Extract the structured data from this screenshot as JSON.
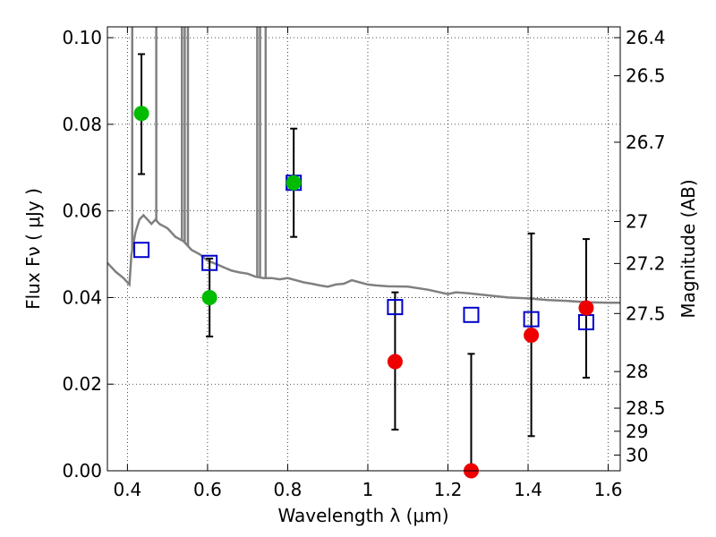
{
  "chart_data": {
    "type": "scatter",
    "xlabel": "Wavelength  λ (μm)",
    "ylabel": "Flux  Fν  ( μJy )",
    "ylabel_right": "Magnitude (AB)",
    "xlim": [
      0.35,
      1.63
    ],
    "ylim": [
      0.0,
      0.1025
    ],
    "grid": true,
    "x_ticks": [
      0.4,
      0.6,
      0.8,
      1.0,
      1.2,
      1.4,
      1.6
    ],
    "x_tick_labels": [
      "0.4",
      "0.6",
      "0.8",
      "1",
      "1.2",
      "1.4",
      "1.6"
    ],
    "y_ticks": [
      0.0,
      0.02,
      0.04,
      0.06,
      0.08,
      0.1
    ],
    "y_tick_labels": [
      "0.00",
      "0.02",
      "0.04",
      "0.06",
      "0.08",
      "0.10"
    ],
    "right_axis_ticks": [
      {
        "label": "26.4",
        "mag": 26.4
      },
      {
        "label": "26.5",
        "mag": 26.5
      },
      {
        "label": "26.7",
        "mag": 26.7
      },
      {
        "label": "27",
        "mag": 27.0
      },
      {
        "label": "27.2",
        "mag": 27.2
      },
      {
        "label": "27.5",
        "mag": 27.5
      },
      {
        "label": "28",
        "mag": 28.0
      },
      {
        "label": "28.5",
        "mag": 28.5
      },
      {
        "label": "29",
        "mag": 29.0
      },
      {
        "label": "30",
        "mag": 30.0
      }
    ],
    "model_spectrum": {
      "color": "#808080",
      "points": [
        [
          0.35,
          0.048
        ],
        [
          0.37,
          0.046
        ],
        [
          0.39,
          0.0445
        ],
        [
          0.405,
          0.043
        ],
        [
          0.41,
          0.05
        ],
        [
          0.42,
          0.055
        ],
        [
          0.43,
          0.058
        ],
        [
          0.44,
          0.059
        ],
        [
          0.45,
          0.058
        ],
        [
          0.46,
          0.057
        ],
        [
          0.47,
          0.058
        ],
        [
          0.48,
          0.057
        ],
        [
          0.5,
          0.056
        ],
        [
          0.52,
          0.054
        ],
        [
          0.54,
          0.053
        ],
        [
          0.56,
          0.051
        ],
        [
          0.58,
          0.05
        ],
        [
          0.6,
          0.0485
        ],
        [
          0.62,
          0.0478
        ],
        [
          0.64,
          0.047
        ],
        [
          0.66,
          0.0462
        ],
        [
          0.68,
          0.0458
        ],
        [
          0.7,
          0.0455
        ],
        [
          0.72,
          0.0448
        ],
        [
          0.74,
          0.0445
        ],
        [
          0.76,
          0.0445
        ],
        [
          0.78,
          0.0442
        ],
        [
          0.8,
          0.0445
        ],
        [
          0.82,
          0.044
        ],
        [
          0.84,
          0.0435
        ],
        [
          0.86,
          0.0432
        ],
        [
          0.88,
          0.0428
        ],
        [
          0.9,
          0.0425
        ],
        [
          0.92,
          0.043
        ],
        [
          0.94,
          0.0432
        ],
        [
          0.96,
          0.044
        ],
        [
          0.98,
          0.0435
        ],
        [
          1.0,
          0.043
        ],
        [
          1.02,
          0.0428
        ],
        [
          1.05,
          0.0426
        ],
        [
          1.1,
          0.0425
        ],
        [
          1.15,
          0.0418
        ],
        [
          1.2,
          0.0408
        ],
        [
          1.22,
          0.0412
        ],
        [
          1.25,
          0.041
        ],
        [
          1.3,
          0.0405
        ],
        [
          1.35,
          0.04
        ],
        [
          1.4,
          0.0398
        ],
        [
          1.45,
          0.0394
        ],
        [
          1.5,
          0.0392
        ],
        [
          1.55,
          0.0389
        ],
        [
          1.6,
          0.0388
        ],
        [
          1.63,
          0.0388
        ]
      ],
      "lines": [
        0.412,
        0.472,
        0.536,
        0.543,
        0.551,
        0.724,
        0.731,
        0.745
      ]
    },
    "series": [
      {
        "marker": "open-square",
        "color": "#0000cc",
        "points": [
          [
            0.435,
            0.051
          ],
          [
            0.605,
            0.048
          ],
          [
            0.815,
            0.0665
          ],
          [
            1.068,
            0.0378
          ],
          [
            1.258,
            0.036
          ],
          [
            1.408,
            0.035
          ],
          [
            1.545,
            0.0343
          ]
        ]
      },
      {
        "marker": "filled-circle",
        "color": "#00bb00",
        "points": [
          [
            0.435,
            0.0825,
            0.0685,
            0.0962
          ],
          [
            0.605,
            0.04,
            0.031,
            0.049
          ],
          [
            0.815,
            0.0665,
            0.054,
            0.079
          ]
        ]
      },
      {
        "marker": "filled-circle",
        "color": "#ee0000",
        "points": [
          [
            1.068,
            0.0252,
            0.0095,
            0.0412
          ],
          [
            1.258,
            0.0,
            0.0,
            0.027
          ],
          [
            1.408,
            0.0313,
            0.008,
            0.0548
          ],
          [
            1.545,
            0.0376,
            0.0215,
            0.0535
          ]
        ]
      }
    ]
  }
}
